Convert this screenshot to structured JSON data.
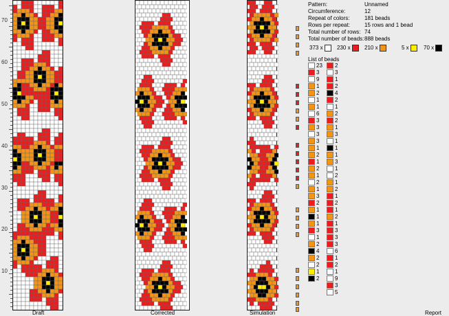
{
  "colors": {
    "white": "#ffffff",
    "red": "#ee1c1c",
    "orange": "#f39414",
    "yellow": "#ffee00",
    "black": "#000000"
  },
  "ruler": {
    "labels": [
      "70",
      "60",
      "50",
      "40",
      "30",
      "20",
      "10"
    ]
  },
  "panels": {
    "draft_label": "Draft",
    "corrected_label": "Corrected",
    "simulation_label": "Simulation",
    "report_label": "Report"
  },
  "info": {
    "rows": [
      {
        "k": "Pattern:",
        "v": "Unnamed"
      },
      {
        "k": "Circumference:",
        "v": "12"
      },
      {
        "k": "Repeat of colors:",
        "v": "181 beads"
      },
      {
        "k": "Rows per repeat:",
        "v": "15 rows and 1 bead"
      },
      {
        "k": "Total number of rows:",
        "v": "74"
      },
      {
        "k": "Total number of beads:",
        "v": "888 beads"
      }
    ]
  },
  "legend": [
    {
      "count": "373 x",
      "color": "white"
    },
    {
      "count": "230 x",
      "color": "red"
    },
    {
      "count": "210 x",
      "color": "orange"
    },
    {
      "count": "5 x",
      "color": "yellow"
    },
    {
      "count": "70 x",
      "color": "black"
    }
  ],
  "list_of_beads_label": "List of beads",
  "bead_list_col1": [
    [
      "white",
      "23"
    ],
    [
      "red",
      "3"
    ],
    [
      "white",
      "9"
    ],
    [
      "orange",
      "1"
    ],
    [
      "orange",
      "2"
    ],
    [
      "white",
      "1"
    ],
    [
      "orange",
      "1"
    ],
    [
      "white",
      "6"
    ],
    [
      "red",
      "3"
    ],
    [
      "orange",
      "3"
    ],
    [
      "white",
      "3"
    ],
    [
      "orange",
      "3"
    ],
    [
      "orange",
      "1"
    ],
    [
      "orange",
      "2"
    ],
    [
      "red",
      "1"
    ],
    [
      "orange",
      "2"
    ],
    [
      "orange",
      "1"
    ],
    [
      "white",
      "2"
    ],
    [
      "orange",
      "1"
    ],
    [
      "orange",
      "3"
    ],
    [
      "red",
      "2"
    ],
    [
      "orange",
      "1"
    ],
    [
      "black",
      "1"
    ],
    [
      "orange",
      "1"
    ],
    [
      "red",
      "3"
    ],
    [
      "white",
      "1"
    ],
    [
      "orange",
      "2"
    ],
    [
      "black",
      "4"
    ],
    [
      "orange",
      "2"
    ],
    [
      "white",
      "2"
    ],
    [
      "yellow",
      "1"
    ],
    [
      "black",
      "2"
    ]
  ],
  "bead_list_col2": [
    [
      "red",
      "2"
    ],
    [
      "white",
      "3"
    ],
    [
      "red",
      "1"
    ],
    [
      "red",
      "2"
    ],
    [
      "black",
      "4"
    ],
    [
      "red",
      "2"
    ],
    [
      "white",
      "1"
    ],
    [
      "orange",
      "2"
    ],
    [
      "red",
      "2"
    ],
    [
      "orange",
      "1"
    ],
    [
      "orange",
      "3"
    ],
    [
      "white",
      "1"
    ],
    [
      "black",
      "1"
    ],
    [
      "orange",
      "1"
    ],
    [
      "orange",
      "3"
    ],
    [
      "white",
      "1"
    ],
    [
      "white",
      "2"
    ],
    [
      "orange",
      "1"
    ],
    [
      "orange",
      "2"
    ],
    [
      "red",
      "1"
    ],
    [
      "red",
      "2"
    ],
    [
      "red",
      "1"
    ],
    [
      "orange",
      "2"
    ],
    [
      "red",
      "1"
    ],
    [
      "red",
      "3"
    ],
    [
      "red",
      "3"
    ],
    [
      "red",
      "3"
    ],
    [
      "white",
      "6"
    ],
    [
      "red",
      "1"
    ],
    [
      "red",
      "2"
    ],
    [
      "white",
      "1"
    ],
    [
      "white",
      "9"
    ],
    [
      "red",
      "3"
    ],
    [
      "white",
      "5"
    ]
  ],
  "marker_colors": [
    "orange",
    "orange",
    "orange",
    "orange",
    "red",
    "red",
    "red",
    "orange",
    "orange",
    "red",
    "red",
    "red",
    "red",
    "red",
    "red",
    "orange",
    "orange",
    "orange",
    "orange",
    "orange",
    "orange",
    "orange",
    "orange",
    "orange",
    "orange",
    "orange"
  ]
}
